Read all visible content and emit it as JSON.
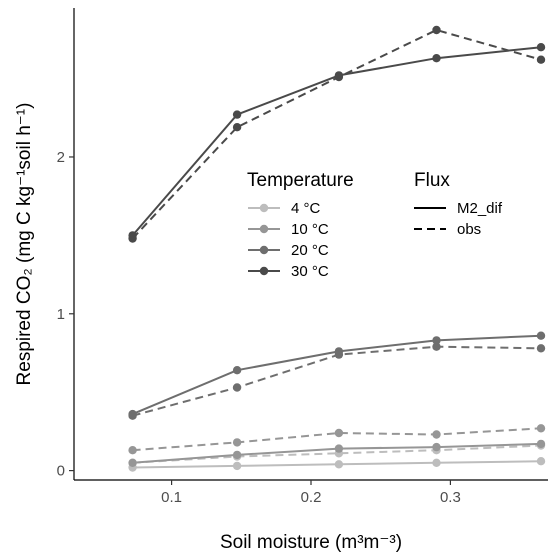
{
  "chart_data": {
    "type": "line",
    "title": "",
    "xlabel": "Soil moisture (m³m⁻³)",
    "ylabel": "Respired CO₂ (mg C kg⁻¹soil h⁻¹)",
    "xlim": [
      0.03,
      0.37
    ],
    "ylim": [
      -0.06,
      2.95
    ],
    "xticks": [
      0.1,
      0.2,
      0.3
    ],
    "xtick_labels": [
      "0.1",
      "0.2",
      "0.3"
    ],
    "yticks": [
      0,
      1,
      2
    ],
    "ytick_labels": [
      "0",
      "1",
      "2"
    ],
    "x": [
      0.072,
      0.147,
      0.22,
      0.29,
      0.365
    ],
    "legend_position": "center",
    "legend": {
      "temperature_title": "Temperature",
      "flux_title": "Flux",
      "temperature_labels": [
        "4 °C",
        "10 °C",
        "20 °C",
        "30 °C"
      ],
      "flux_labels": [
        "M2_dif",
        "obs"
      ]
    },
    "colors": {
      "4C": "#bdbdbd",
      "10C": "#969696",
      "20C": "#6e6e6e",
      "30C": "#4a4a4a"
    },
    "series": [
      {
        "temperature": "4 °C",
        "flux": "M2_dif",
        "color_key": "4C",
        "values": [
          0.02,
          0.03,
          0.04,
          0.05,
          0.06
        ]
      },
      {
        "temperature": "4 °C",
        "flux": "obs",
        "color_key": "4C",
        "values": [
          0.05,
          0.09,
          0.11,
          0.13,
          0.16
        ]
      },
      {
        "temperature": "10 °C",
        "flux": "M2_dif",
        "color_key": "10C",
        "values": [
          0.05,
          0.1,
          0.14,
          0.15,
          0.17
        ]
      },
      {
        "temperature": "10 °C",
        "flux": "obs",
        "color_key": "10C",
        "values": [
          0.13,
          0.18,
          0.24,
          0.23,
          0.27
        ]
      },
      {
        "temperature": "20 °C",
        "flux": "M2_dif",
        "color_key": "20C",
        "values": [
          0.36,
          0.64,
          0.76,
          0.83,
          0.86
        ]
      },
      {
        "temperature": "20 °C",
        "flux": "obs",
        "color_key": "20C",
        "values": [
          0.35,
          0.53,
          0.74,
          0.79,
          0.78
        ]
      },
      {
        "temperature": "30 °C",
        "flux": "M2_dif",
        "color_key": "30C",
        "values": [
          1.5,
          2.27,
          2.52,
          2.63,
          2.7
        ]
      },
      {
        "temperature": "30 °C",
        "flux": "obs",
        "color_key": "30C",
        "values": [
          1.48,
          2.19,
          2.51,
          2.81,
          2.62
        ]
      }
    ]
  }
}
